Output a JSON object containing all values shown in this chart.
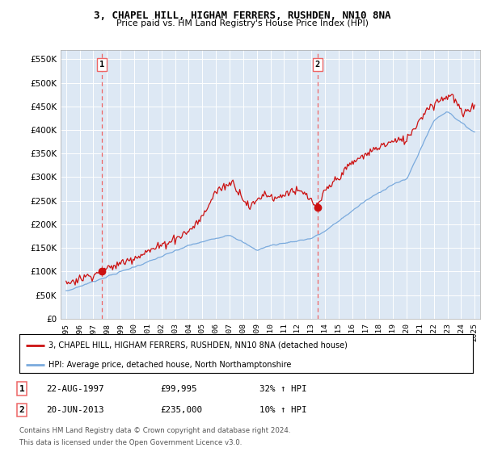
{
  "title": "3, CHAPEL HILL, HIGHAM FERRERS, RUSHDEN, NN10 8NA",
  "subtitle": "Price paid vs. HM Land Registry's House Price Index (HPI)",
  "legend_line1": "3, CHAPEL HILL, HIGHAM FERRERS, RUSHDEN, NN10 8NA (detached house)",
  "legend_line2": "HPI: Average price, detached house, North Northamptonshire",
  "footer1": "Contains HM Land Registry data © Crown copyright and database right 2024.",
  "footer2": "This data is licensed under the Open Government Licence v3.0.",
  "sale1_label": "1",
  "sale1_date": "22-AUG-1997",
  "sale1_price": "£99,995",
  "sale1_hpi": "32% ↑ HPI",
  "sale2_label": "2",
  "sale2_date": "20-JUN-2013",
  "sale2_price": "£235,000",
  "sale2_hpi": "10% ↑ HPI",
  "sale1_x": 1997.63,
  "sale1_y": 99995,
  "sale2_x": 2013.47,
  "sale2_y": 235000,
  "ylim": [
    0,
    570000
  ],
  "xlim": [
    1994.6,
    2025.4
  ],
  "hpi_color": "#7aaadd",
  "sale_color": "#cc1111",
  "dashed_line_color": "#ee6666",
  "background_color": "#dde8f4",
  "grid_color": "#c8d8e8",
  "yticks": [
    0,
    50000,
    100000,
    150000,
    200000,
    250000,
    300000,
    350000,
    400000,
    450000,
    500000,
    550000
  ],
  "xticks": [
    1995,
    1996,
    1997,
    1998,
    1999,
    2000,
    2001,
    2002,
    2003,
    2004,
    2005,
    2006,
    2007,
    2008,
    2009,
    2010,
    2011,
    2012,
    2013,
    2014,
    2015,
    2016,
    2017,
    2018,
    2019,
    2020,
    2021,
    2022,
    2023,
    2024,
    2025
  ]
}
